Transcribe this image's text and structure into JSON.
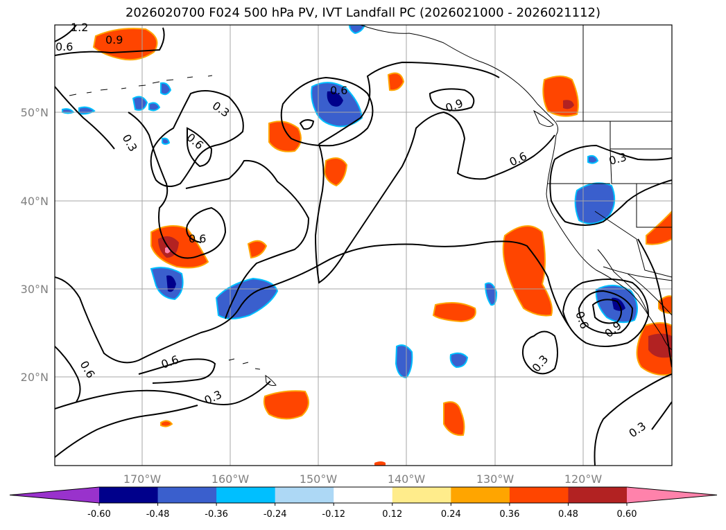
{
  "title": "2026020700 F024 500 hPa PV, IVT Landfall PC (2026021000 - 2026021112)",
  "lon_labels": [
    "170°W",
    "160°W",
    "150°W",
    "140°W",
    "130°W",
    "120°W"
  ],
  "lat_labels": [
    "50°N",
    "40°N",
    "30°N",
    "20°N"
  ],
  "contour_labels": [
    "1.2",
    "0.9",
    "0.6",
    "0.6",
    "0.3",
    "0.3",
    "0.6",
    "0.6",
    "0.9",
    "0.6",
    "0.3",
    "0.6",
    "0.6",
    "0.3",
    "0.6",
    "0.9",
    "0.3",
    "0.3"
  ],
  "colorbar": {
    "ticks": [
      "-0.60",
      "-0.48",
      "-0.36",
      "-0.24",
      "-0.12",
      "0.12",
      "0.24",
      "0.36",
      "0.48",
      "0.60"
    ],
    "colors": [
      "#9932CC",
      "#00008B",
      "#3A5FCD",
      "#00BFFF",
      "#ADD8F5",
      "#FFFFFF",
      "#FFEC8B",
      "#FFA500",
      "#FF4500",
      "#B22222",
      "#FF82AB"
    ]
  },
  "map_style": {
    "coastline": "#000000",
    "gridlines": "#a6a6a6",
    "contour": "#000000"
  }
}
